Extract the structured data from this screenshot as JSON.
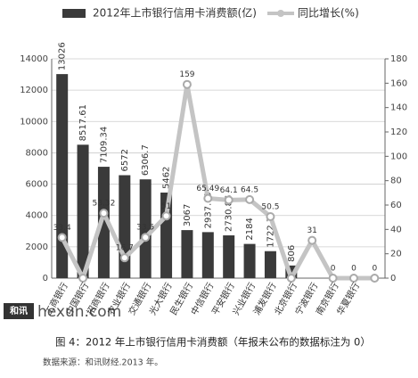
{
  "chart_data": {
    "type": "bar",
    "categories": [
      "工商银行",
      "中国银行",
      "招商银行",
      "农业银行",
      "交通银行",
      "光大银行",
      "民生银行",
      "中信银行",
      "平安银行",
      "兴业银行",
      "浦发银行",
      "北京银行",
      "宁波银行",
      "南京银行",
      "华夏银行",
      null
    ],
    "series": [
      {
        "name": "2012年上市银行信用卡消费额(亿)",
        "color": "#3a3a3a",
        "values": [
          13026,
          8517.61,
          7109.34,
          6572,
          6306.7,
          5462,
          3067,
          2937.69,
          2730.86,
          2184,
          1722.7,
          806,
          0,
          0,
          0,
          0
        ],
        "value_labels": [
          "13026",
          "8517.61",
          "7109.34",
          "6572",
          "6306.7",
          "5462",
          "3067",
          "2937.69",
          "2730.86",
          "2184",
          "1722.7",
          "806",
          null,
          null,
          null,
          null
        ]
      },
      {
        "name": "同比增长(%)",
        "color": "#c4c4c4",
        "axis": "y2",
        "values": [
          33.4,
          0,
          53.32,
          16.7,
          33.5,
          51,
          159,
          65.49,
          64.1,
          64.5,
          50.5,
          0,
          31,
          0,
          0,
          0
        ],
        "value_labels": [
          "33.4",
          null,
          "53.32",
          "16.7",
          "33.5",
          "51",
          "159",
          "65.49",
          "64.1",
          "64.5",
          "50.5",
          null,
          "31",
          "0",
          "0",
          "0"
        ]
      }
    ],
    "ylim": [
      0,
      14000
    ],
    "yticks": [
      0,
      2000,
      4000,
      6000,
      8000,
      10000,
      12000,
      14000
    ],
    "y2lim": [
      0,
      180
    ],
    "y2ticks": [
      0,
      20,
      40,
      60,
      80,
      100,
      120,
      140,
      160,
      180
    ],
    "grid": true,
    "watermark": "hexun.com",
    "logo": "和讯",
    "caption": "图 4：2012 年上市银行信用卡消费额（年报未公布的数据标注为 0）",
    "source": "数据来源：和讯财经.2013 年。"
  }
}
